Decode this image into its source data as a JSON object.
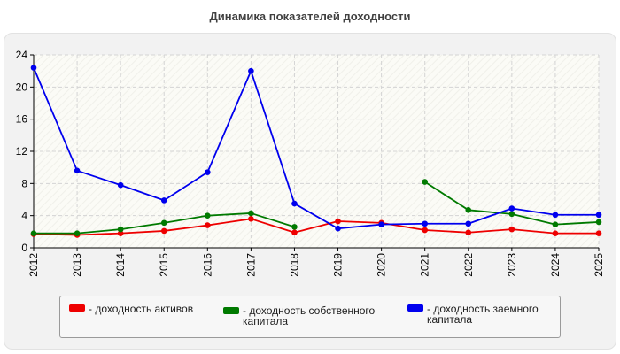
{
  "chart_data": {
    "type": "line",
    "title": "Динамика показателей доходности",
    "categories": [
      "2012",
      "2013",
      "2014",
      "2015",
      "2016",
      "2017",
      "2018",
      "2019",
      "2020",
      "2021",
      "2022",
      "2023",
      "2024",
      "2025"
    ],
    "ylim": [
      0,
      24
    ],
    "yticks": [
      0,
      4,
      8,
      12,
      16,
      20,
      24
    ],
    "grid": true,
    "legend_position": "bottom",
    "series": [
      {
        "name": "- доходность активов",
        "color": "#ee0000",
        "values": [
          1.7,
          1.6,
          1.8,
          2.1,
          2.8,
          3.6,
          1.9,
          3.3,
          3.1,
          2.2,
          1.9,
          2.3,
          1.8,
          1.8
        ]
      },
      {
        "name": "- доходность собственного капитала",
        "color": "#007a00",
        "values": [
          1.8,
          1.8,
          2.3,
          3.1,
          4.0,
          4.3,
          2.6,
          null,
          null,
          8.2,
          4.7,
          4.2,
          2.9,
          3.2
        ]
      },
      {
        "name": "- доходность заемного капитала",
        "color": "#0000ee",
        "values": [
          22.4,
          9.6,
          7.8,
          5.9,
          9.4,
          22.0,
          5.5,
          2.4,
          2.9,
          3.0,
          3.0,
          4.9,
          4.1,
          4.1
        ]
      }
    ]
  }
}
